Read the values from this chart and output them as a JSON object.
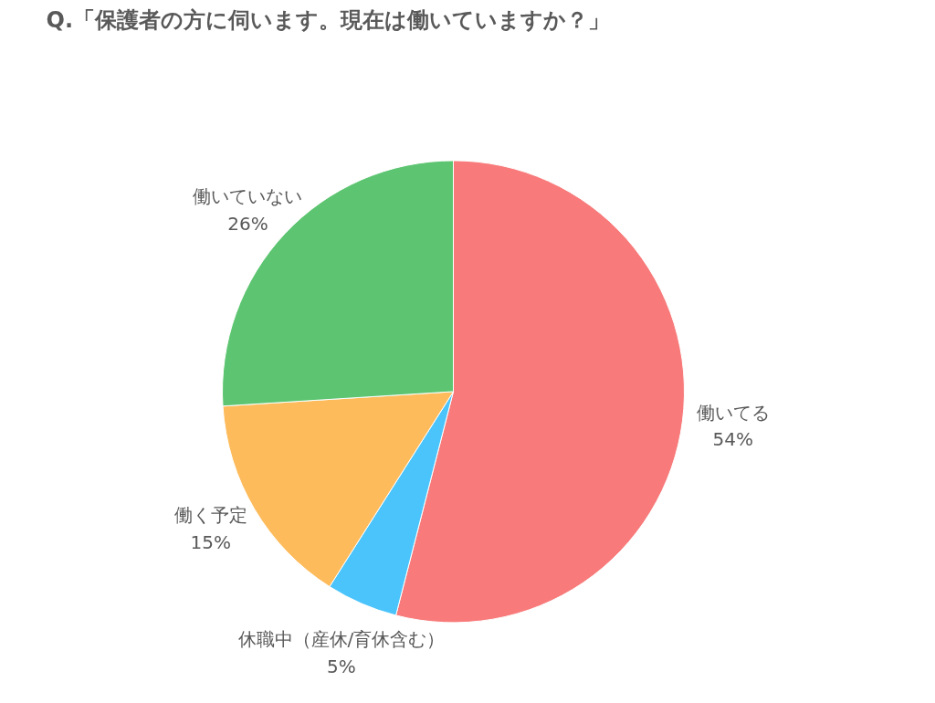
{
  "chart_data": {
    "type": "pie",
    "title": "Q.「保護者の方に伺います。現在は働いていますか？」",
    "categories": [
      "働いてる",
      "休職中（産休/育休含む）",
      "働く予定",
      "働いていない"
    ],
    "values": [
      54,
      5,
      15,
      26
    ],
    "colors": [
      "#f87a7a",
      "#4bc4fb",
      "#fdbb5b",
      "#5dc571"
    ],
    "value_labels": [
      "54%",
      "5%",
      "15%",
      "26%"
    ]
  }
}
